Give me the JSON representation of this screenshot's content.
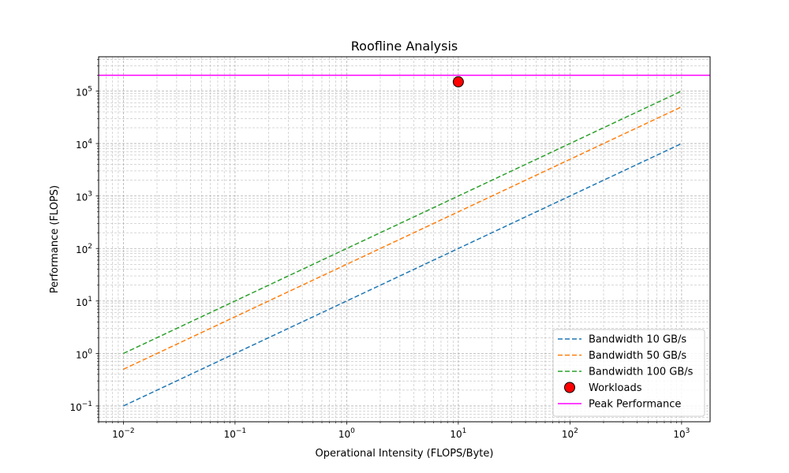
{
  "chart_data": {
    "type": "line",
    "title": "Roofline Analysis",
    "xlabel": "Operational Intensity (FLOPS/Byte)",
    "ylabel": "Performance (FLOPS)",
    "xscale": "log",
    "yscale": "log",
    "xlim": [
      0.006,
      1800
    ],
    "ylim": [
      0.05,
      450000
    ],
    "grid": "major and minor, dashed",
    "legend_position": "lower-right",
    "x_ticks": [
      {
        "value": 0.01,
        "base": "10",
        "exp": "−2"
      },
      {
        "value": 0.1,
        "base": "10",
        "exp": "−1"
      },
      {
        "value": 1,
        "base": "10",
        "exp": "0"
      },
      {
        "value": 10,
        "base": "10",
        "exp": "1"
      },
      {
        "value": 100,
        "base": "10",
        "exp": "2"
      },
      {
        "value": 1000,
        "base": "10",
        "exp": "3"
      }
    ],
    "y_ticks": [
      {
        "value": 0.1,
        "base": "10",
        "exp": "−1"
      },
      {
        "value": 1,
        "base": "10",
        "exp": "0"
      },
      {
        "value": 10,
        "base": "10",
        "exp": "1"
      },
      {
        "value": 100,
        "base": "10",
        "exp": "2"
      },
      {
        "value": 1000,
        "base": "10",
        "exp": "3"
      },
      {
        "value": 10000,
        "base": "10",
        "exp": "4"
      },
      {
        "value": 100000,
        "base": "10",
        "exp": "5"
      }
    ],
    "series": [
      {
        "name": "Bandwidth 10 GB/s",
        "kind": "line",
        "style": "dashed",
        "color": "#1f77b4",
        "x": [
          0.01,
          1000
        ],
        "y": [
          0.1,
          10000
        ]
      },
      {
        "name": "Bandwidth 50 GB/s",
        "kind": "line",
        "style": "dashed",
        "color": "#ff7f0e",
        "x": [
          0.01,
          1000
        ],
        "y": [
          0.5,
          50000
        ]
      },
      {
        "name": "Bandwidth 100 GB/s",
        "kind": "line",
        "style": "dashed",
        "color": "#2ca02c",
        "x": [
          0.01,
          1000
        ],
        "y": [
          1,
          100000
        ]
      },
      {
        "name": "Workloads",
        "kind": "scatter",
        "color": "#ff0000",
        "edge_color": "#000000",
        "x": [
          10
        ],
        "y": [
          150000
        ]
      },
      {
        "name": "Peak Performance",
        "kind": "hline",
        "style": "solid",
        "color": "#ff00ff",
        "y": 200000
      }
    ]
  }
}
